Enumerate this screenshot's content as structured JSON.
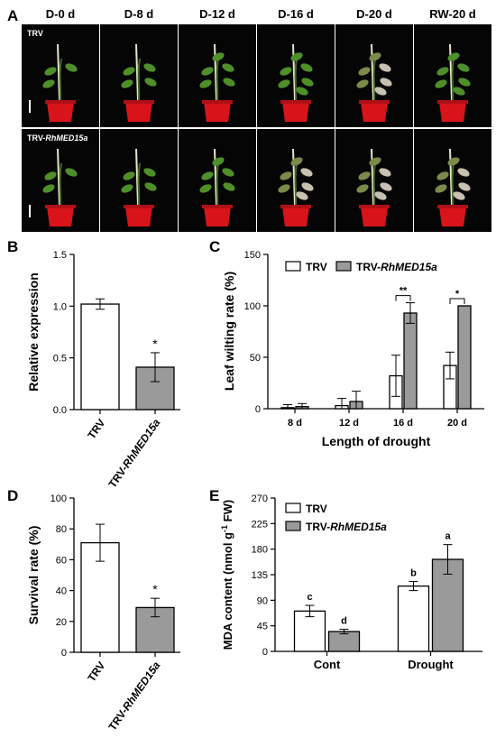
{
  "figure": {
    "panel_letters": [
      "A",
      "B",
      "C",
      "D",
      "E"
    ],
    "photo_columns": [
      "D-0 d",
      "D-8 d",
      "D-12 d",
      "D-16 d",
      "D-20 d",
      "RW-20 d"
    ],
    "photo_rows": [
      {
        "prefix": "TRV",
        "gene": ""
      },
      {
        "prefix": "TRV-",
        "gene": "RhMED15a"
      }
    ],
    "colors": {
      "open_bar": "#ffffff",
      "gray_bar": "#9a9a9a",
      "photo_bg": "#050505",
      "pot": "#d8141a",
      "leaf": "#4f8f2a"
    }
  },
  "chart_data": [
    {
      "panel": "B",
      "type": "bar",
      "categories": [
        {
          "prefix": "TRV",
          "gene": ""
        },
        {
          "prefix": "TRV-",
          "gene": "RhMED15a"
        }
      ],
      "values": [
        1.02,
        0.41
      ],
      "errors": [
        0.05,
        0.14
      ],
      "fills": [
        "#ffffff",
        "#9a9a9a"
      ],
      "significance": [
        "",
        "*"
      ],
      "ylabel": "Relative expression",
      "ylim": [
        0,
        1.5
      ],
      "yticks": [
        "0.0",
        "0.5",
        "1.0",
        "1.5"
      ]
    },
    {
      "panel": "C",
      "type": "bar",
      "categories": [
        "8 d",
        "12 d",
        "16 d",
        "20 d"
      ],
      "series": [
        {
          "legend": {
            "prefix": "TRV",
            "gene": ""
          },
          "values": [
            1,
            3,
            32,
            42
          ],
          "errors": [
            3,
            7,
            20,
            13
          ],
          "fill": "#ffffff"
        },
        {
          "legend": {
            "prefix": "TRV-",
            "gene": "RhMED15a"
          },
          "values": [
            2,
            7,
            93,
            100
          ],
          "errors": [
            3,
            10,
            10,
            0
          ],
          "fill": "#9a9a9a"
        }
      ],
      "significance": [
        "",
        "",
        "**",
        "*"
      ],
      "xlabel": "Length of drought",
      "ylabel": "Leaf wilting rate (%)",
      "ylim": [
        0,
        150
      ],
      "yticks": [
        "0",
        "50",
        "100",
        "150"
      ],
      "legend_position": "top"
    },
    {
      "panel": "D",
      "type": "bar",
      "categories": [
        {
          "prefix": "TRV",
          "gene": ""
        },
        {
          "prefix": "TRV-",
          "gene": "RhMED15a"
        }
      ],
      "values": [
        71,
        29
      ],
      "errors": [
        12,
        6
      ],
      "fills": [
        "#ffffff",
        "#9a9a9a"
      ],
      "significance": [
        "",
        "*"
      ],
      "ylabel": "Survival rate (%)",
      "ylim": [
        0,
        100
      ],
      "yticks": [
        "0",
        "20",
        "40",
        "60",
        "80",
        "100"
      ]
    },
    {
      "panel": "E",
      "type": "bar",
      "categories": [
        "Cont",
        "Drought"
      ],
      "series": [
        {
          "legend": {
            "prefix": "TRV",
            "gene": ""
          },
          "values": [
            71,
            115
          ],
          "errors": [
            10,
            8
          ],
          "letters": [
            "c",
            "b"
          ],
          "fill": "#ffffff"
        },
        {
          "legend": {
            "prefix": "TRV-",
            "gene": "RhMED15a"
          },
          "values": [
            35,
            162
          ],
          "errors": [
            4,
            26
          ],
          "letters": [
            "d",
            "a"
          ],
          "fill": "#9a9a9a"
        }
      ],
      "ylabel_prefix": "MDA content (nmol g",
      "ylabel_sup": "-1",
      "ylabel_suffix": " FW)",
      "ylim": [
        0,
        270
      ],
      "yticks": [
        "0",
        "45",
        "90",
        "135",
        "180",
        "225",
        "270"
      ],
      "legend_position": "top-left"
    }
  ]
}
